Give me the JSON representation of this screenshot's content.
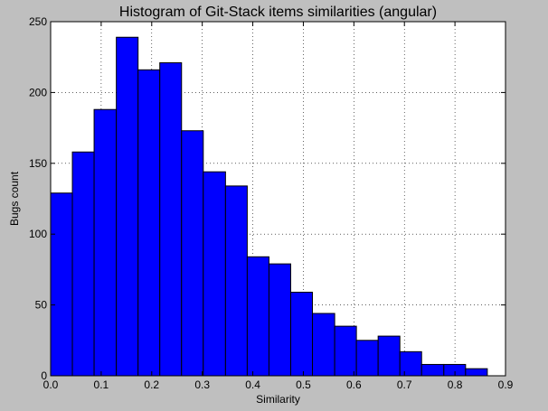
{
  "chart_data": {
    "type": "bar",
    "title": "Histogram of Git-Stack items similarities (angular)",
    "xlabel": "Similarity",
    "ylabel": "Bugs count",
    "xlim": [
      0.0,
      0.9
    ],
    "ylim": [
      0,
      250
    ],
    "xticks": [
      "0.0",
      "0.1",
      "0.2",
      "0.3",
      "0.4",
      "0.5",
      "0.6",
      "0.7",
      "0.8",
      "0.9"
    ],
    "yticks": [
      "0",
      "50",
      "100",
      "150",
      "200",
      "250"
    ],
    "grid": true,
    "legend": "none",
    "bar_color": "#0000ff",
    "edge_color": "#000000",
    "background_color": "#bfbfbf",
    "bins": [
      {
        "start": 0.0,
        "end": 0.043,
        "count": 129
      },
      {
        "start": 0.043,
        "end": 0.086,
        "count": 158
      },
      {
        "start": 0.086,
        "end": 0.13,
        "count": 188
      },
      {
        "start": 0.13,
        "end": 0.173,
        "count": 239
      },
      {
        "start": 0.173,
        "end": 0.216,
        "count": 216
      },
      {
        "start": 0.216,
        "end": 0.259,
        "count": 221
      },
      {
        "start": 0.259,
        "end": 0.302,
        "count": 173
      },
      {
        "start": 0.302,
        "end": 0.346,
        "count": 144
      },
      {
        "start": 0.346,
        "end": 0.389,
        "count": 134
      },
      {
        "start": 0.389,
        "end": 0.432,
        "count": 84
      },
      {
        "start": 0.432,
        "end": 0.475,
        "count": 79
      },
      {
        "start": 0.475,
        "end": 0.518,
        "count": 59
      },
      {
        "start": 0.518,
        "end": 0.562,
        "count": 44
      },
      {
        "start": 0.562,
        "end": 0.605,
        "count": 35
      },
      {
        "start": 0.605,
        "end": 0.648,
        "count": 25
      },
      {
        "start": 0.648,
        "end": 0.691,
        "count": 28
      },
      {
        "start": 0.691,
        "end": 0.734,
        "count": 17
      },
      {
        "start": 0.734,
        "end": 0.778,
        "count": 8
      },
      {
        "start": 0.778,
        "end": 0.821,
        "count": 8
      },
      {
        "start": 0.821,
        "end": 0.864,
        "count": 5
      }
    ]
  }
}
